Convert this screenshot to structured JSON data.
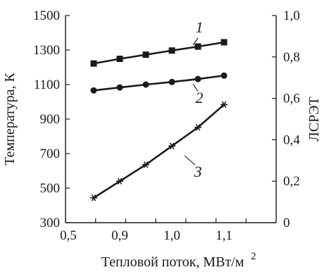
{
  "chart_data": {
    "type": "line",
    "x_axis": {
      "label": "Тепловой поток, МВт/м",
      "label_superscript": "2",
      "range": [
        0.5,
        1.2
      ],
      "ticks": [
        0.5,
        0.6,
        0.7,
        0.8,
        0.9,
        1.0,
        1.1
      ],
      "tick_labels": [
        "0,5",
        "",
        "",
        "",
        "0,9",
        "1,0",
        "1,1"
      ]
    },
    "y_left": {
      "label": "Температура, К",
      "range": [
        300,
        1500
      ],
      "ticks": [
        300,
        500,
        700,
        900,
        1100,
        1300,
        1500
      ],
      "tick_labels": [
        "300",
        "500",
        "700",
        "900",
        "1100",
        "1300",
        "1500"
      ]
    },
    "y_right": {
      "label": "ЛСРЭТ",
      "range": [
        0,
        1.0
      ],
      "ticks": [
        0,
        0.2,
        0.4,
        0.6,
        0.8,
        1.0
      ],
      "tick_labels": [
        "0",
        "0,2",
        "0,4",
        "0,6",
        "0,8",
        "1,0"
      ]
    },
    "series": [
      {
        "label": "1",
        "axis": "left",
        "marker": "square",
        "x": [
          0.85,
          0.9,
          0.95,
          1.0,
          1.05,
          1.1
        ],
        "y": [
          1222,
          1249,
          1273,
          1297,
          1320,
          1345
        ]
      },
      {
        "label": "2",
        "axis": "left",
        "marker": "circle",
        "x": [
          0.85,
          0.9,
          0.95,
          1.0,
          1.05,
          1.1
        ],
        "y": [
          1066,
          1083,
          1100,
          1115,
          1132,
          1152
        ]
      },
      {
        "label": "3",
        "axis": "right",
        "marker": "asterisk",
        "x": [
          0.85,
          0.9,
          0.95,
          1.0,
          1.05,
          1.1
        ],
        "y": [
          0.12,
          0.2,
          0.28,
          0.37,
          0.46,
          0.57
        ]
      }
    ],
    "curve_label_anchors": [
      {
        "label": "1",
        "series": 0,
        "x": 1.06,
        "y_on_left": 1392
      },
      {
        "label": "2",
        "series": 1,
        "x": 1.06,
        "y_on_left": 1040
      },
      {
        "label": "3",
        "series": 2,
        "x": 1.04,
        "y_on_left": 780
      }
    ],
    "grid": false,
    "legend": "none"
  }
}
